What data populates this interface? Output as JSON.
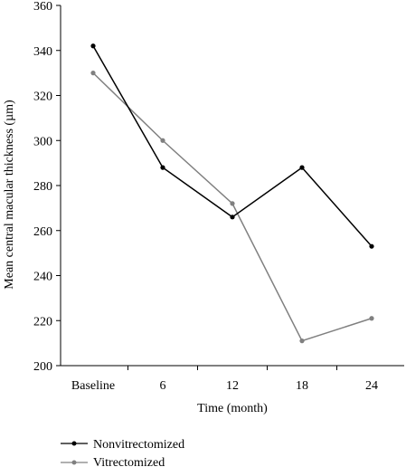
{
  "chart_data": {
    "type": "line",
    "title": "",
    "xlabel": "Time (month)",
    "ylabel": "Mean central macular thickness (µm)",
    "categories": [
      "Baseline",
      "6",
      "12",
      "18",
      "24"
    ],
    "ylim": [
      200,
      360
    ],
    "yticks": [
      "200",
      "220",
      "240",
      "260",
      "280",
      "300",
      "320",
      "340",
      "360"
    ],
    "grid": false,
    "legend_position": "bottom-left",
    "series": [
      {
        "name": "Nonvitrectomized",
        "color": "#000000",
        "values": [
          342,
          288,
          266,
          288,
          253
        ]
      },
      {
        "name": "Vitrectomized",
        "color": "#808080",
        "values": [
          330,
          300,
          272,
          211,
          221
        ]
      }
    ]
  }
}
